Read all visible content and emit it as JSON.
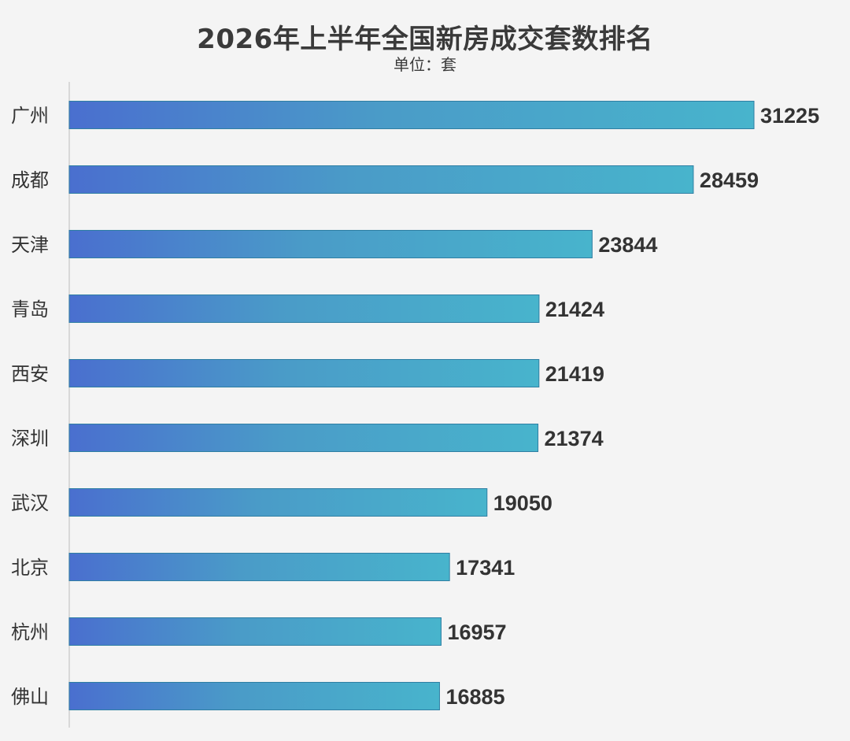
{
  "colors": {
    "background": "#f4f4f4",
    "bar_gradient_start": "#4a6fcf",
    "bar_gradient_mid": "#4a9bc8",
    "bar_gradient_end": "#48b4cc",
    "bar_border": "#2f7fa3",
    "axis": "#cfcfcf",
    "text": "#333333"
  },
  "chart_data": {
    "type": "bar",
    "orientation": "horizontal",
    "title": "2026年上半年全国新房成交套数排名",
    "subtitle": "单位：套",
    "categories": [
      "广州",
      "成都",
      "天津",
      "青岛",
      "西安",
      "深圳",
      "武汉",
      "北京",
      "杭州",
      "佛山"
    ],
    "values": [
      31225,
      28459,
      23844,
      21424,
      21419,
      21374,
      19050,
      17341,
      16957,
      16885
    ],
    "xlim": [
      0,
      31225
    ],
    "grid": false,
    "legend": "none",
    "data_labels": true
  }
}
